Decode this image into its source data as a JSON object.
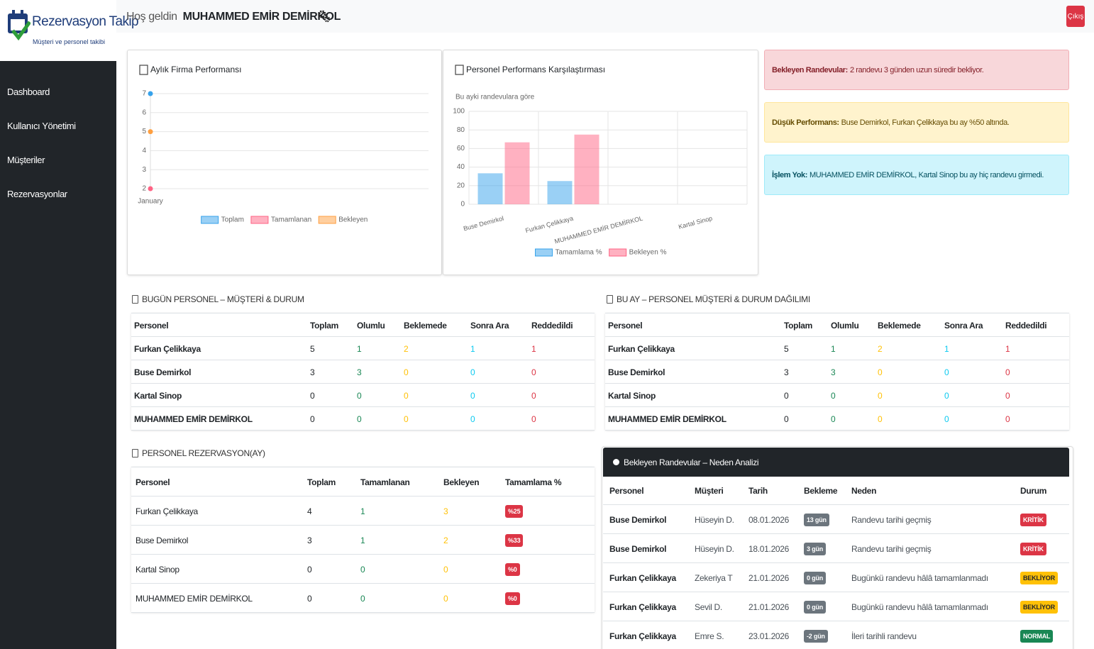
{
  "header": {
    "brand": "Rezervasyon Takip",
    "tagline": "Müşteri ve personel takibi",
    "welcome": "Hoş geldin",
    "user": "MUHAMMED EMİR DEMİRKOL",
    "logout": "Çıkış"
  },
  "sidebar": {
    "items": [
      "Dashboard",
      "Kullanıcı Yönetimi",
      "Müşteriler",
      "Rezervasyonlar"
    ]
  },
  "chart_data": [
    {
      "type": "line",
      "title": "Aylık Firma Performansı",
      "categories": [
        "January"
      ],
      "series": [
        {
          "name": "Toplam",
          "color": "#36a2eb",
          "values": [
            7
          ]
        },
        {
          "name": "Tamamlanan",
          "color": "#ff6384",
          "values": [
            2
          ]
        },
        {
          "name": "Bekleyen",
          "color": "#ff9f40",
          "values": [
            5
          ]
        }
      ],
      "ylim": [
        2,
        7
      ],
      "yticks": [
        2,
        3,
        4,
        5,
        6,
        7
      ],
      "grid": true,
      "legend": "bottom"
    },
    {
      "type": "bar",
      "title": "Personel Performans Karşılaştırması",
      "subtitle": "Bu ayki randevulara göre",
      "categories": [
        "Buse Demirkol",
        "Furkan Çelikkaya",
        "MUHAMMED EMİR DEMİRKOL",
        "Kartal Sinop"
      ],
      "series": [
        {
          "name": "Tamamlama %",
          "color": "#36a2eb",
          "values": [
            33.33,
            25,
            0,
            0
          ]
        },
        {
          "name": "Bekleyen %",
          "color": "#ff6384",
          "values": [
            66.67,
            75,
            0,
            0
          ]
        }
      ],
      "ylim": [
        0,
        100
      ],
      "yticks": [
        0,
        20,
        40,
        60,
        80,
        100
      ],
      "grid": true,
      "legend": "bottom"
    }
  ],
  "alerts": [
    {
      "label": "Bekleyen Randevular:",
      "text": "2 randevu 3 günden uzun süredir bekliyor.",
      "bg": "#f8d7da",
      "border": "#f1aeb5",
      "color": "#842029"
    },
    {
      "label": "Düşük Performans:",
      "text": "Buse Demirkol, Furkan Çelikkaya bu ay %50 altında.",
      "bg": "#fff3cd",
      "border": "#ffe69c",
      "color": "#664d03"
    },
    {
      "label": "İşlem Yok:",
      "text": "MUHAMMED EMİR DEMİRKOL, Kartal Sinop bu ay hiç randevu girmedi.",
      "bg": "#cff4fc",
      "border": "#9eeaf9",
      "color": "#055160"
    }
  ],
  "tables": [
    {
      "title": "BUGÜN PERSONEL – MÜŞTERİ & DURUM",
      "columns": [
        "Personel",
        "Toplam",
        "Olumlu",
        "Beklemede",
        "Sonra Ara",
        "Reddedildi"
      ],
      "column_colors": [
        "#212529",
        "#212529",
        "#198754",
        "#ffc107",
        "#0dcaf0",
        "#dc3545"
      ],
      "first_column_bold": true,
      "badge_columns": [],
      "badge_colors": [],
      "rows": [
        [
          "Furkan Çelikkaya",
          5,
          1,
          2,
          1,
          1
        ],
        [
          "Buse Demirkol",
          3,
          3,
          0,
          0,
          0
        ],
        [
          "Kartal Sinop",
          0,
          0,
          0,
          0,
          0
        ],
        [
          "MUHAMMED EMİR DEMİRKOL",
          0,
          0,
          0,
          0,
          0
        ]
      ]
    },
    {
      "title": "BU AY – PERSONEL MÜŞTERİ & DURUM DAĞILIMI",
      "columns": [
        "Personel",
        "Toplam",
        "Olumlu",
        "Beklemede",
        "Sonra Ara",
        "Reddedildi"
      ],
      "column_colors": [
        "#212529",
        "#212529",
        "#198754",
        "#ffc107",
        "#0dcaf0",
        "#dc3545"
      ],
      "first_column_bold": true,
      "badge_columns": [],
      "badge_colors": [],
      "rows": [
        [
          "Furkan Çelikkaya",
          5,
          1,
          2,
          1,
          1
        ],
        [
          "Buse Demirkol",
          3,
          3,
          0,
          0,
          0
        ],
        [
          "Kartal Sinop",
          0,
          0,
          0,
          0,
          0
        ],
        [
          "MUHAMMED EMİR DEMİRKOL",
          0,
          0,
          0,
          0,
          0
        ]
      ]
    },
    {
      "title": "PERSONEL REZERVASYON(AY)",
      "columns": [
        "Personel",
        "Toplam",
        "Tamamlanan",
        "Bekleyen",
        "Tamamlama %"
      ],
      "column_colors": [
        "#212529",
        "#212529",
        "#198754",
        "#ffc107",
        "#212529"
      ],
      "first_column_bold": false,
      "badge_columns": [
        4
      ],
      "badge_colors": [
        [
          "#dc3545",
          "#dc3545",
          "#dc3545",
          "#dc3545"
        ]
      ],
      "rows": [
        [
          "Furkan Çelikkaya",
          4,
          1,
          3,
          "%25"
        ],
        [
          "Buse Demirkol",
          3,
          1,
          2,
          "%33"
        ],
        [
          "Kartal Sinop",
          0,
          0,
          0,
          "%0"
        ],
        [
          "MUHAMMED EMİR DEMİRKOL",
          0,
          0,
          0,
          "%0"
        ]
      ]
    },
    {
      "title": "Bekleyen Randevular – Neden Analizi",
      "columns": [
        "Personel",
        "Müşteri",
        "Tarih",
        "Bekleme",
        "Neden",
        "Durum"
      ],
      "column_colors": [
        "#212529",
        "#495057",
        "#495057",
        "#212529",
        "#495057",
        "#212529"
      ],
      "first_column_bold": true,
      "badge_columns": [
        3,
        5
      ],
      "badge_colors": [
        [
          "#6c757d",
          "#6c757d",
          "#6c757d",
          "#6c757d",
          "#6c757d"
        ],
        [
          "#dc3545",
          "#dc3545",
          "#ffc107",
          "#ffc107",
          "#198754"
        ]
      ],
      "rows": [
        [
          "Buse Demirkol",
          "Hüseyin D.",
          "08.01.2026",
          "13 gün",
          "Randevu tarihi geçmiş",
          "KRİTİK"
        ],
        [
          "Buse Demirkol",
          "Hüseyin D.",
          "18.01.2026",
          "3 gün",
          "Randevu tarihi geçmiş",
          "KRİTİK"
        ],
        [
          "Furkan Çelikkaya",
          "Zekeriya T",
          "21.01.2026",
          "0 gün",
          "Bugünkü randevu hâlâ tamamlanmadı",
          "BEKLİYOR"
        ],
        [
          "Furkan Çelikkaya",
          "Sevil D.",
          "21.01.2026",
          "0 gün",
          "Bugünkü randevu hâlâ tamamlanmadı",
          "BEKLİYOR"
        ],
        [
          "Furkan Çelikkaya",
          "Emre S.",
          "23.01.2026",
          "-2 gün",
          "İleri tarihli randevu",
          "NORMAL"
        ]
      ]
    }
  ]
}
